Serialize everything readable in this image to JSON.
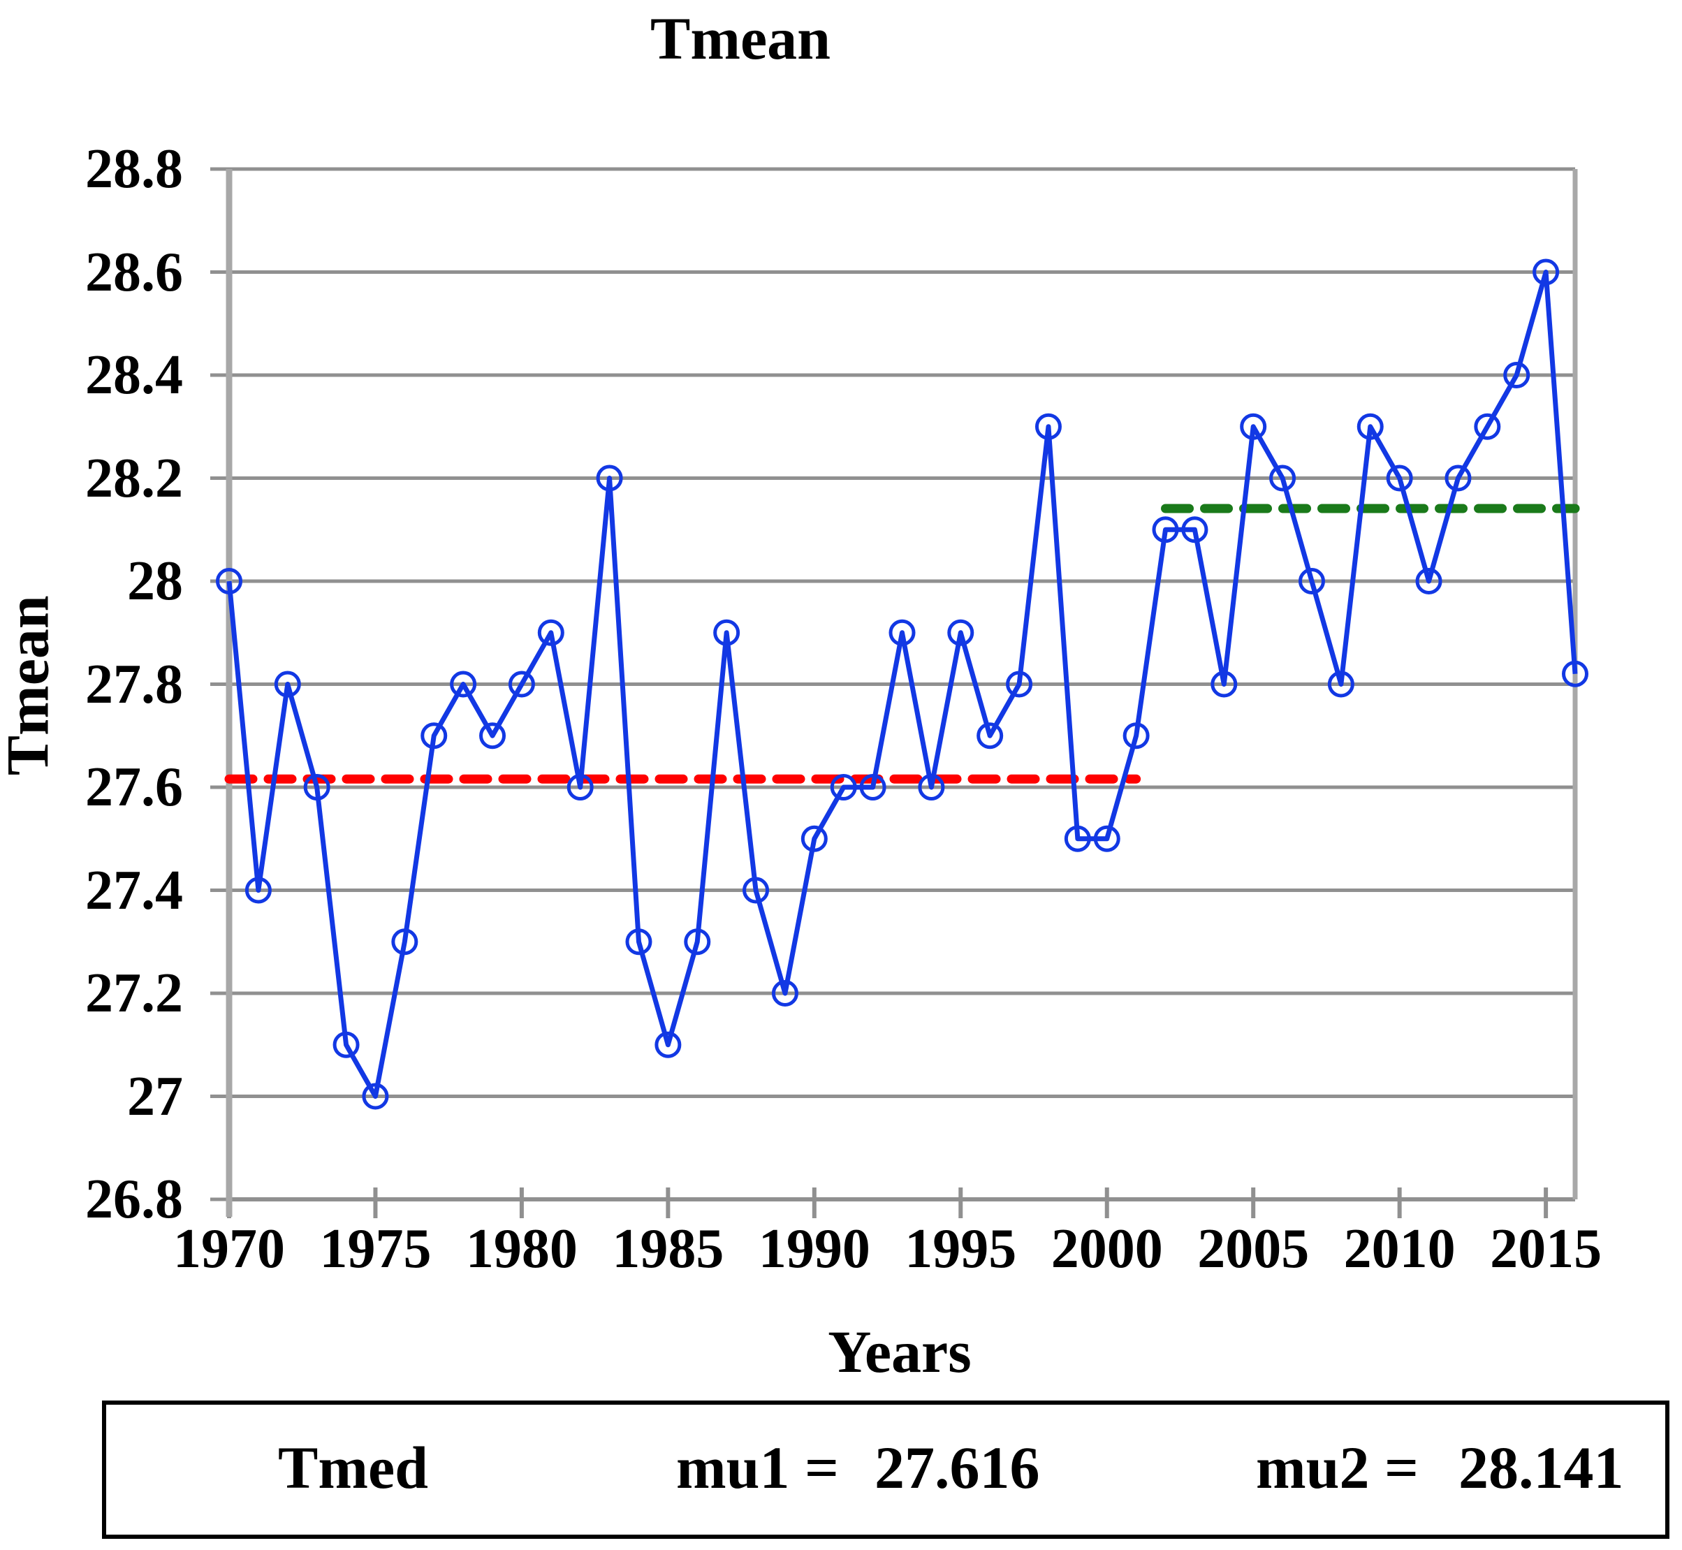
{
  "title": "Tmean",
  "colors": {
    "series_blue": "#1238e4",
    "mu1_red": "#ff0000",
    "mu2_green": "#1a7a1a",
    "gridline_grey": "#909090",
    "axis_grey": "#a8a8a8",
    "text": "#000000",
    "background": "#ffffff",
    "legend_border": "#000000"
  },
  "chart_data": {
    "type": "line",
    "title": "Tmean",
    "xlabel": "Years",
    "ylabel": "Tmean",
    "x": [
      1970,
      1971,
      1972,
      1973,
      1974,
      1975,
      1976,
      1977,
      1978,
      1979,
      1980,
      1981,
      1982,
      1983,
      1984,
      1985,
      1986,
      1987,
      1988,
      1989,
      1990,
      1991,
      1992,
      1993,
      1994,
      1995,
      1996,
      1997,
      1998,
      1999,
      2000,
      2001,
      2002,
      2003,
      2004,
      2005,
      2006,
      2007,
      2008,
      2009,
      2010,
      2011,
      2012,
      2013,
      2014,
      2015,
      2016
    ],
    "series": [
      {
        "name": "Tmed",
        "marker": "open-circle",
        "color": "#1238e4",
        "values": [
          28.0,
          27.4,
          27.8,
          27.6,
          27.1,
          27.0,
          27.3,
          27.7,
          27.8,
          27.7,
          27.8,
          27.9,
          27.6,
          28.2,
          27.3,
          27.1,
          27.3,
          27.9,
          27.4,
          27.2,
          27.5,
          27.6,
          27.6,
          27.9,
          27.6,
          27.9,
          27.7,
          27.8,
          28.3,
          27.5,
          27.5,
          27.7,
          28.1,
          28.1,
          27.8,
          28.3,
          28.2,
          28.0,
          27.8,
          28.3,
          28.2,
          28.0,
          28.2,
          28.3,
          28.4,
          28.6,
          27.82
        ]
      }
    ],
    "reference_lines": [
      {
        "name": "mu1",
        "value": 27.616,
        "x_start": 1970,
        "x_end": 2001,
        "style": "dashed",
        "color": "#ff0000"
      },
      {
        "name": "mu2",
        "value": 28.141,
        "x_start": 2002,
        "x_end": 2016,
        "style": "dashed",
        "color": "#1a7a1a"
      }
    ],
    "ylim": [
      26.8,
      28.8
    ],
    "yticks": [
      26.8,
      27.0,
      27.2,
      27.4,
      27.6,
      27.8,
      28.0,
      28.2,
      28.4,
      28.6,
      28.8
    ],
    "ytick_labels": [
      "26.8",
      "27",
      "27.2",
      "27.4",
      "27.6",
      "27.8",
      "28",
      "28.2",
      "28.4",
      "28.6",
      "28.8"
    ],
    "xticks": [
      1970,
      1975,
      1980,
      1985,
      1990,
      1995,
      2000,
      2005,
      2010,
      2015
    ],
    "xtick_labels": [
      "1970",
      "1975",
      "1980",
      "1985",
      "1990",
      "1995",
      "2000",
      "2005",
      "2010",
      "2015"
    ],
    "grid": "horizontal",
    "legend_position": "bottom"
  },
  "legend": {
    "series_label": "Tmed",
    "mu1_label": "mu1 =",
    "mu1_value": "27.616",
    "mu2_label": "mu2 =",
    "mu2_value": "28.141"
  }
}
